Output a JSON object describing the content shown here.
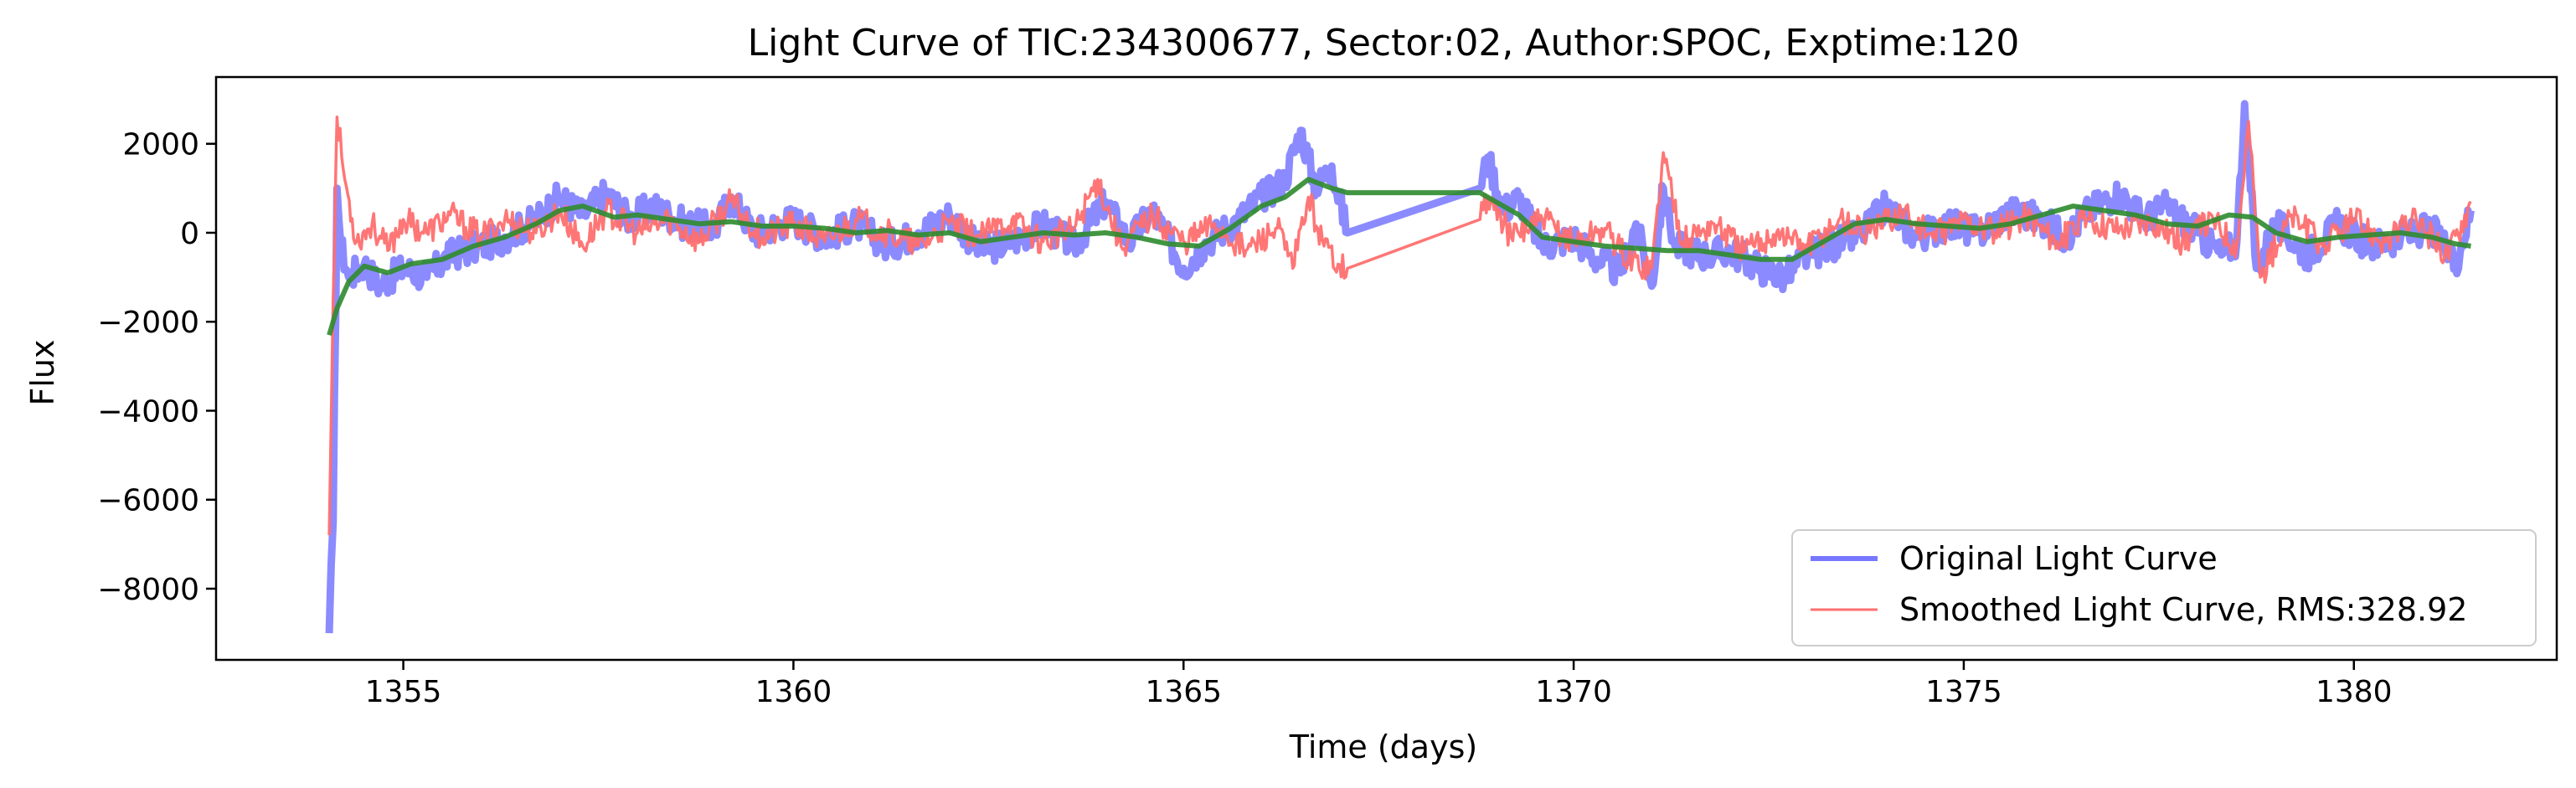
{
  "chart_data": {
    "type": "line",
    "title": "Light Curve of TIC:234300677, Sector:02, Author:SPOC, Exptime:120",
    "xlabel": "Time (days)",
    "ylabel": "Flux",
    "xlim": [
      1352.6,
      1382.6
    ],
    "ylim": [
      -9600,
      3500
    ],
    "x_ticks": [
      1355,
      1360,
      1365,
      1370,
      1375,
      1380
    ],
    "x_tick_labels": [
      "1355",
      "1360",
      "1365",
      "1370",
      "1375",
      "1380"
    ],
    "y_ticks": [
      2000,
      0,
      -2000,
      -4000,
      -6000,
      -8000
    ],
    "y_tick_labels": [
      "2000",
      "0",
      "−2000",
      "−4000",
      "−6000",
      "−8000"
    ],
    "grid": false,
    "legend_position": "lower-right",
    "gap": [
      1367.1,
      1368.8
    ],
    "series": [
      {
        "name": "Original Light Curve",
        "color": "#7777ff",
        "points": [
          [
            1354.05,
            -9000
          ],
          [
            1354.1,
            -6500
          ],
          [
            1354.15,
            1000
          ],
          [
            1354.2,
            -300
          ],
          [
            1354.3,
            -1000
          ],
          [
            1354.5,
            -700
          ],
          [
            1354.7,
            -1200
          ],
          [
            1355.0,
            -800
          ],
          [
            1355.3,
            -1000
          ],
          [
            1355.6,
            -500
          ],
          [
            1356.0,
            -300
          ],
          [
            1356.3,
            -100
          ],
          [
            1356.7,
            300
          ],
          [
            1357.0,
            800
          ],
          [
            1357.3,
            400
          ],
          [
            1357.6,
            900
          ],
          [
            1357.9,
            300
          ],
          [
            1358.2,
            600
          ],
          [
            1358.6,
            200
          ],
          [
            1359.0,
            100
          ],
          [
            1359.2,
            800
          ],
          [
            1359.5,
            0
          ],
          [
            1360.0,
            300
          ],
          [
            1360.4,
            -100
          ],
          [
            1360.8,
            200
          ],
          [
            1361.2,
            -300
          ],
          [
            1361.6,
            0
          ],
          [
            1362.0,
            400
          ],
          [
            1362.4,
            -400
          ],
          [
            1362.8,
            -200
          ],
          [
            1363.2,
            200
          ],
          [
            1363.6,
            -300
          ],
          [
            1364.0,
            700
          ],
          [
            1364.3,
            -200
          ],
          [
            1364.6,
            500
          ],
          [
            1365.0,
            -800
          ],
          [
            1365.3,
            -200
          ],
          [
            1365.7,
            300
          ],
          [
            1366.0,
            800
          ],
          [
            1366.3,
            1200
          ],
          [
            1366.5,
            2300
          ],
          [
            1366.7,
            1000
          ],
          [
            1366.9,
            1500
          ],
          [
            1367.1,
            0
          ],
          [
            1368.8,
            1000
          ],
          [
            1368.9,
            1700
          ],
          [
            1369.1,
            500
          ],
          [
            1369.3,
            800
          ],
          [
            1369.6,
            -300
          ],
          [
            1370.0,
            -100
          ],
          [
            1370.3,
            -600
          ],
          [
            1370.6,
            -900
          ],
          [
            1370.8,
            200
          ],
          [
            1371.0,
            -1200
          ],
          [
            1371.15,
            1000
          ],
          [
            1371.3,
            -300
          ],
          [
            1371.7,
            -500
          ],
          [
            1372.0,
            -400
          ],
          [
            1372.4,
            -800
          ],
          [
            1372.7,
            -1000
          ],
          [
            1373.0,
            -500
          ],
          [
            1373.3,
            -300
          ],
          [
            1373.7,
            0
          ],
          [
            1374.0,
            600
          ],
          [
            1374.4,
            -100
          ],
          [
            1374.8,
            200
          ],
          [
            1375.2,
            0
          ],
          [
            1375.6,
            500
          ],
          [
            1376.0,
            300
          ],
          [
            1376.3,
            -100
          ],
          [
            1376.6,
            500
          ],
          [
            1377.0,
            900
          ],
          [
            1377.3,
            300
          ],
          [
            1377.6,
            600
          ],
          [
            1378.0,
            0
          ],
          [
            1378.3,
            -500
          ],
          [
            1378.5,
            -200
          ],
          [
            1378.6,
            2900
          ],
          [
            1378.75,
            -800
          ],
          [
            1379.0,
            200
          ],
          [
            1379.4,
            -500
          ],
          [
            1379.8,
            200
          ],
          [
            1380.2,
            -300
          ],
          [
            1380.6,
            -100
          ],
          [
            1381.0,
            100
          ],
          [
            1381.3,
            -700
          ],
          [
            1381.5,
            500
          ]
        ]
      },
      {
        "name": "Smoothed Light Curve, RMS:328.92",
        "color": "#ff6f6f",
        "points": [
          [
            1354.05,
            -6800
          ],
          [
            1354.1,
            -1500
          ],
          [
            1354.15,
            2600
          ],
          [
            1354.25,
            1200
          ],
          [
            1354.4,
            -200
          ],
          [
            1354.6,
            200
          ],
          [
            1354.8,
            -400
          ],
          [
            1355.0,
            300
          ],
          [
            1355.3,
            0
          ],
          [
            1355.6,
            400
          ],
          [
            1356.0,
            -100
          ],
          [
            1356.3,
            300
          ],
          [
            1356.7,
            0
          ],
          [
            1357.0,
            500
          ],
          [
            1357.3,
            -300
          ],
          [
            1357.6,
            500
          ],
          [
            1358.0,
            0
          ],
          [
            1358.4,
            300
          ],
          [
            1358.8,
            -200
          ],
          [
            1359.2,
            700
          ],
          [
            1359.6,
            -100
          ],
          [
            1360.0,
            200
          ],
          [
            1360.4,
            -200
          ],
          [
            1360.8,
            300
          ],
          [
            1361.2,
            0
          ],
          [
            1361.6,
            -300
          ],
          [
            1362.0,
            200
          ],
          [
            1362.4,
            -100
          ],
          [
            1362.8,
            300
          ],
          [
            1363.2,
            -200
          ],
          [
            1363.6,
            100
          ],
          [
            1363.9,
            1200
          ],
          [
            1364.2,
            -300
          ],
          [
            1364.6,
            400
          ],
          [
            1365.0,
            -200
          ],
          [
            1365.4,
            200
          ],
          [
            1365.8,
            -400
          ],
          [
            1366.2,
            100
          ],
          [
            1366.4,
            -800
          ],
          [
            1366.6,
            800
          ],
          [
            1366.8,
            -300
          ],
          [
            1367.1,
            -800
          ],
          [
            1368.8,
            300
          ],
          [
            1368.9,
            800
          ],
          [
            1369.2,
            -100
          ],
          [
            1369.6,
            300
          ],
          [
            1370.0,
            -200
          ],
          [
            1370.4,
            100
          ],
          [
            1370.7,
            -600
          ],
          [
            1371.0,
            -800
          ],
          [
            1371.15,
            1800
          ],
          [
            1371.4,
            -200
          ],
          [
            1371.8,
            200
          ],
          [
            1372.2,
            -400
          ],
          [
            1372.6,
            0
          ],
          [
            1373.0,
            -300
          ],
          [
            1373.4,
            300
          ],
          [
            1373.8,
            0
          ],
          [
            1374.2,
            500
          ],
          [
            1374.6,
            -100
          ],
          [
            1375.0,
            300
          ],
          [
            1375.4,
            0
          ],
          [
            1375.8,
            400
          ],
          [
            1376.2,
            -200
          ],
          [
            1376.6,
            300
          ],
          [
            1377.0,
            100
          ],
          [
            1377.4,
            300
          ],
          [
            1377.8,
            -200
          ],
          [
            1378.2,
            300
          ],
          [
            1378.5,
            -300
          ],
          [
            1378.65,
            2500
          ],
          [
            1378.8,
            -1000
          ],
          [
            1379.2,
            400
          ],
          [
            1379.6,
            -300
          ],
          [
            1380.0,
            300
          ],
          [
            1380.4,
            -200
          ],
          [
            1380.8,
            300
          ],
          [
            1381.2,
            -500
          ],
          [
            1381.5,
            700
          ]
        ]
      },
      {
        "color": "#2e8b2e",
        "points": [
          [
            1354.05,
            -2300
          ],
          [
            1354.15,
            -1700
          ],
          [
            1354.3,
            -1100
          ],
          [
            1354.5,
            -750
          ],
          [
            1354.8,
            -900
          ],
          [
            1355.1,
            -700
          ],
          [
            1355.5,
            -600
          ],
          [
            1355.9,
            -300
          ],
          [
            1356.3,
            -100
          ],
          [
            1356.7,
            200
          ],
          [
            1357.0,
            500
          ],
          [
            1357.3,
            600
          ],
          [
            1357.7,
            350
          ],
          [
            1358.0,
            400
          ],
          [
            1358.4,
            300
          ],
          [
            1358.8,
            200
          ],
          [
            1359.2,
            250
          ],
          [
            1359.6,
            150
          ],
          [
            1360.0,
            150
          ],
          [
            1360.4,
            100
          ],
          [
            1360.8,
            0
          ],
          [
            1361.2,
            50
          ],
          [
            1361.6,
            -50
          ],
          [
            1362.0,
            0
          ],
          [
            1362.4,
            -200
          ],
          [
            1362.8,
            -100
          ],
          [
            1363.2,
            0
          ],
          [
            1363.6,
            -50
          ],
          [
            1364.0,
            0
          ],
          [
            1364.4,
            -100
          ],
          [
            1364.8,
            -250
          ],
          [
            1365.2,
            -300
          ],
          [
            1365.6,
            100
          ],
          [
            1366.0,
            600
          ],
          [
            1366.3,
            800
          ],
          [
            1366.6,
            1200
          ],
          [
            1366.9,
            1000
          ],
          [
            1367.1,
            900
          ],
          [
            1368.8,
            900
          ],
          [
            1369.0,
            700
          ],
          [
            1369.3,
            400
          ],
          [
            1369.6,
            -100
          ],
          [
            1370.0,
            -200
          ],
          [
            1370.4,
            -300
          ],
          [
            1370.8,
            -350
          ],
          [
            1371.2,
            -400
          ],
          [
            1371.6,
            -400
          ],
          [
            1372.0,
            -500
          ],
          [
            1372.4,
            -600
          ],
          [
            1372.8,
            -600
          ],
          [
            1373.2,
            -200
          ],
          [
            1373.6,
            200
          ],
          [
            1374.0,
            300
          ],
          [
            1374.4,
            200
          ],
          [
            1374.8,
            150
          ],
          [
            1375.2,
            100
          ],
          [
            1375.6,
            200
          ],
          [
            1376.0,
            400
          ],
          [
            1376.4,
            600
          ],
          [
            1376.8,
            500
          ],
          [
            1377.2,
            400
          ],
          [
            1377.6,
            200
          ],
          [
            1378.0,
            150
          ],
          [
            1378.4,
            400
          ],
          [
            1378.7,
            350
          ],
          [
            1379.0,
            0
          ],
          [
            1379.4,
            -200
          ],
          [
            1379.8,
            -100
          ],
          [
            1380.2,
            -50
          ],
          [
            1380.6,
            0
          ],
          [
            1381.0,
            -100
          ],
          [
            1381.3,
            -250
          ],
          [
            1381.5,
            -300
          ]
        ]
      }
    ]
  }
}
